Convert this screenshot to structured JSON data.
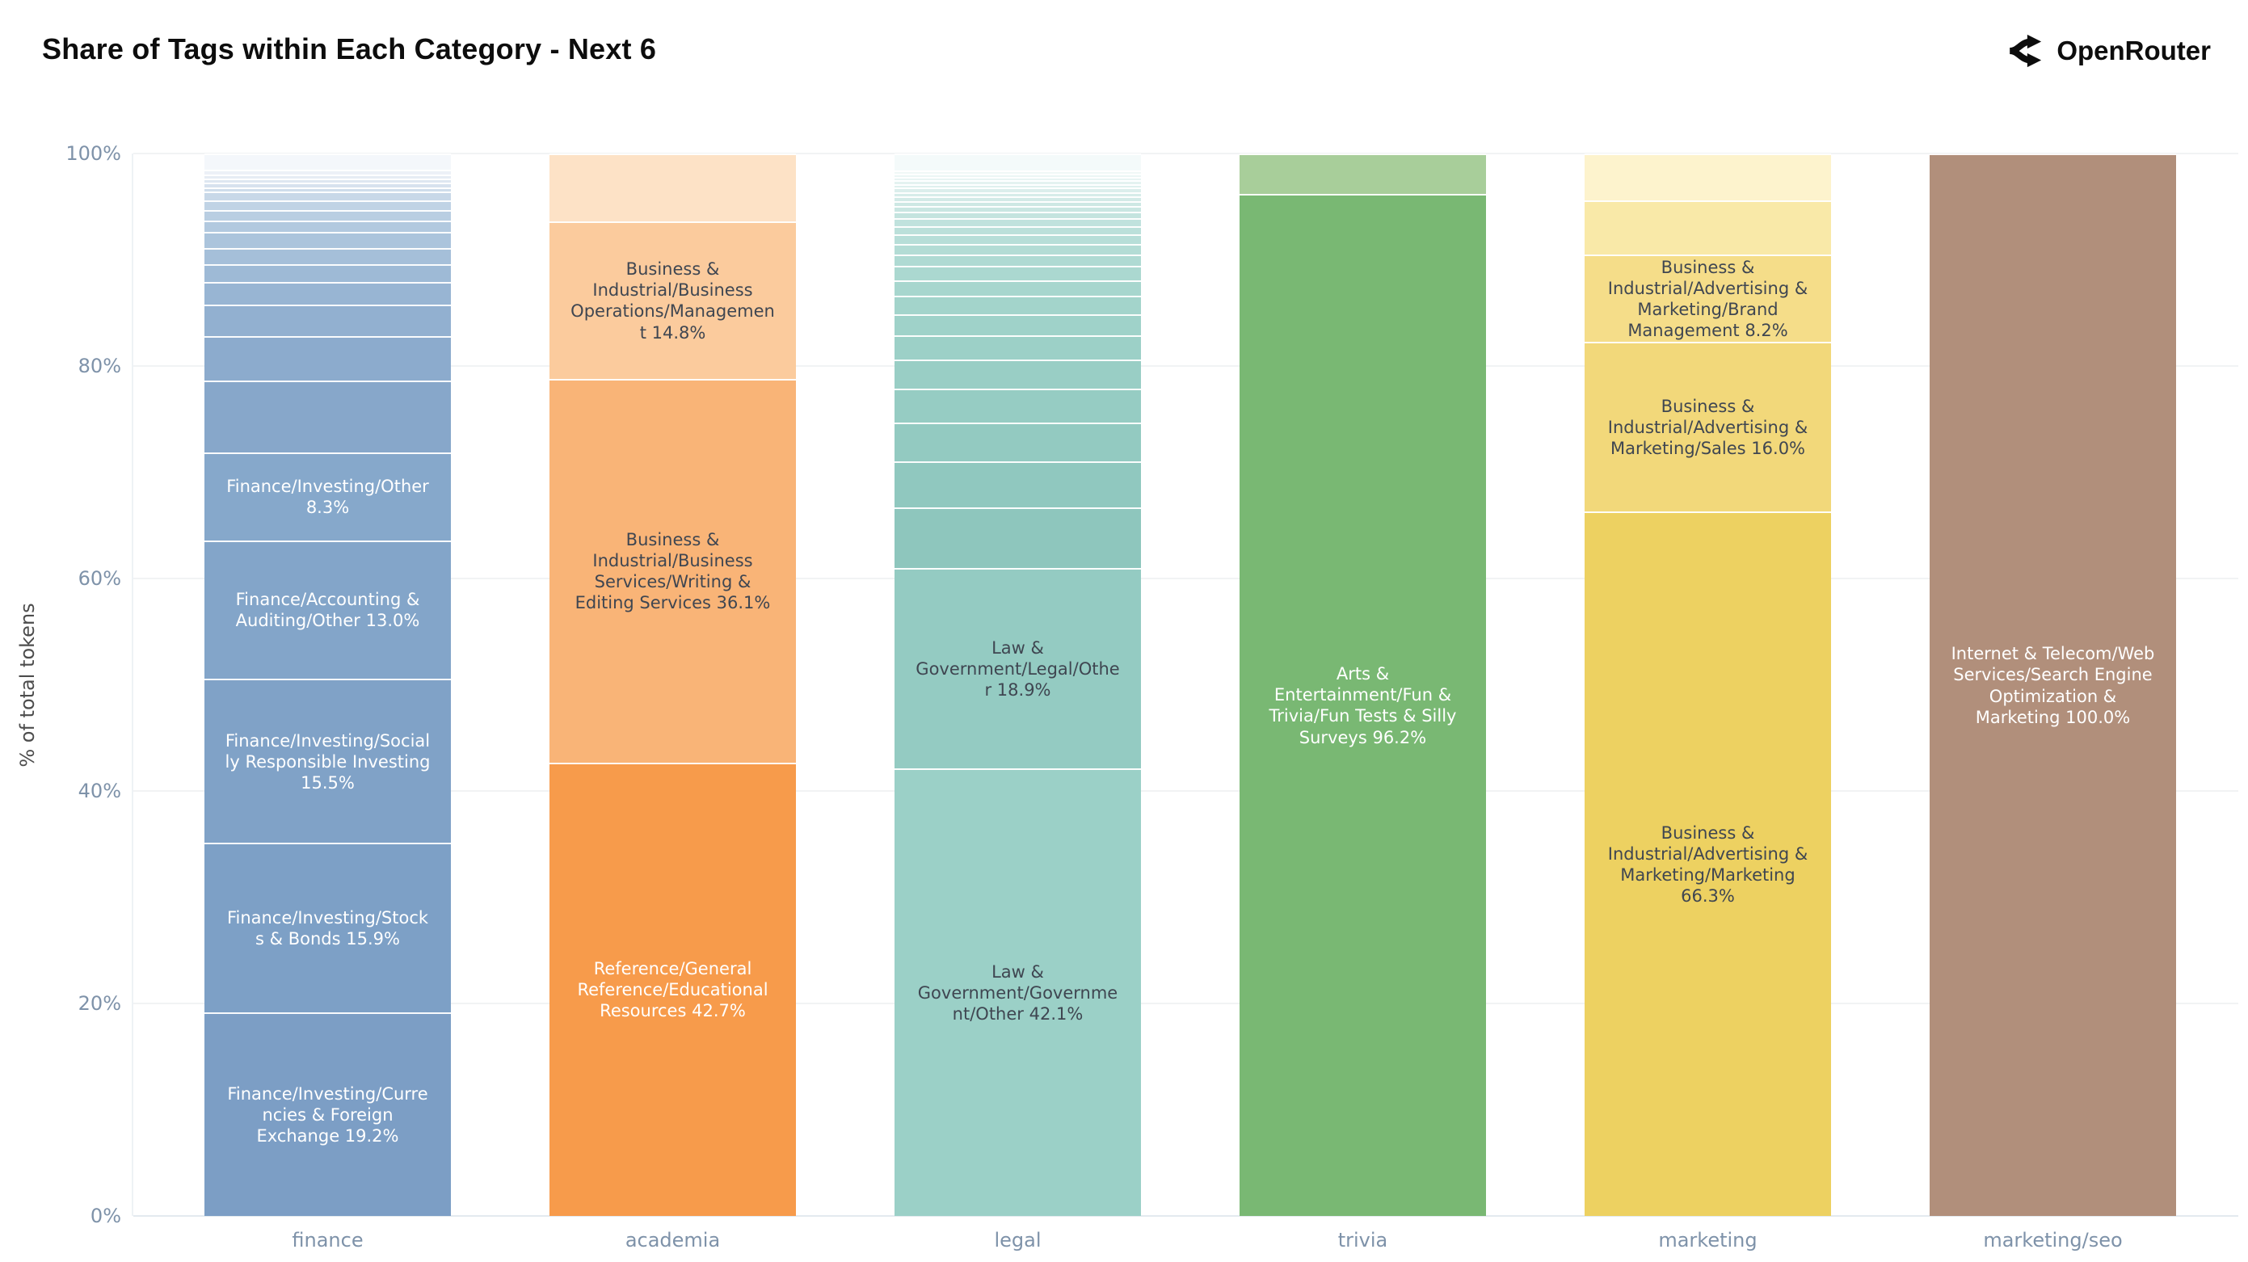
{
  "header": {
    "title": "Share of Tags within Each Category - Next 6",
    "brand": "OpenRouter"
  },
  "chart_data": {
    "type": "bar",
    "stacked": true,
    "title": "Share of Tags within Each Category - Next 6",
    "xlabel": "",
    "ylabel": "% of total tokens",
    "ylim": [
      0,
      100
    ],
    "yticks": [
      0,
      20,
      40,
      60,
      80,
      100
    ],
    "ytick_labels": [
      "0%",
      "20%",
      "40%",
      "60%",
      "80%",
      "100%"
    ],
    "grid": true,
    "legend": "none",
    "categories": [
      "finance",
      "academia",
      "legal",
      "trivia",
      "marketing",
      "marketing/seo"
    ],
    "accent_colors": {
      "finance": "#7d9fc5",
      "academia": "#f79b4b",
      "legal": "#99cfc6",
      "trivia": "#79b873",
      "marketing": "#edd161",
      "marketing_seo": "#b18f7b",
      "axis_text": "#7e92a9",
      "dark_label": "#3f4651",
      "light_label": "#ffffff"
    },
    "bars": [
      {
        "category": "finance",
        "segments": [
          {
            "label": "Finance/Investing/Currencies & Foreign Exchange",
            "value": 19.2,
            "color": "#7c9ec5",
            "text_color": "#ffffff"
          },
          {
            "label": "Finance/Investing/Stocks & Bonds",
            "value": 15.9,
            "color": "#7da0c6",
            "text_color": "#ffffff"
          },
          {
            "label": "Finance/Investing/Socially Responsible Investing",
            "value": 15.5,
            "color": "#80a2c7",
            "text_color": "#ffffff"
          },
          {
            "label": "Finance/Accounting & Auditing/Other",
            "value": 13.0,
            "color": "#83a5c9",
            "text_color": "#ffffff"
          },
          {
            "label": "Finance/Investing/Other",
            "value": 8.3,
            "color": "#86a8cb",
            "text_color": "#ffffff"
          },
          {
            "label": "",
            "value": 6.7,
            "color": "#87a7ca"
          },
          {
            "label": "",
            "value": 4.2,
            "color": "#8cabcd"
          },
          {
            "label": "",
            "value": 3.0,
            "color": "#92b0d0"
          },
          {
            "label": "",
            "value": 2.1,
            "color": "#98b5d3"
          },
          {
            "label": "",
            "value": 1.7,
            "color": "#9ebad6"
          },
          {
            "label": "",
            "value": 1.5,
            "color": "#a5bfd9"
          },
          {
            "label": "",
            "value": 1.5,
            "color": "#abc4dc"
          },
          {
            "label": "",
            "value": 1.1,
            "color": "#b2c9df"
          },
          {
            "label": "",
            "value": 1.0,
            "color": "#b9cee2"
          },
          {
            "label": "",
            "value": 0.9,
            "color": "#c0d3e5"
          },
          {
            "label": "",
            "value": 0.8,
            "color": "#c8d8e8"
          },
          {
            "label": "",
            "value": 0.45,
            "color": "#cfddeb"
          },
          {
            "label": "",
            "value": 0.4,
            "color": "#d7e2ee"
          },
          {
            "label": "",
            "value": 0.4,
            "color": "#dee7f1"
          },
          {
            "label": "",
            "value": 0.4,
            "color": "#e6ecf4"
          },
          {
            "label": "",
            "value": 0.45,
            "color": "#edf1f7"
          },
          {
            "label": "",
            "value": 1.5,
            "color": "#f4f7fb"
          }
        ]
      },
      {
        "category": "academia",
        "segments": [
          {
            "label": "Reference/General Reference/Educational Resources",
            "value": 42.7,
            "color": "#f79b4b",
            "text_color": "#ffffff"
          },
          {
            "label": "Business & Industrial/Business Services/Writing & Editing Services",
            "value": 36.1,
            "color": "#f9b477",
            "text_color": "#3f4651"
          },
          {
            "label": "Business & Industrial/Business Operations/Management",
            "value": 14.8,
            "color": "#fbcb9d",
            "text_color": "#3f4651"
          },
          {
            "label": "",
            "value": 6.4,
            "color": "#fde2c6"
          }
        ]
      },
      {
        "category": "legal",
        "segments": [
          {
            "label": "Law & Government/Government/Other",
            "value": 42.1,
            "color": "#9bd0c7",
            "text_color": "#3f4651"
          },
          {
            "label": "Law & Government/Legal/Other",
            "value": 18.9,
            "color": "#94cbc2",
            "text_color": "#3f4651"
          },
          {
            "label": "",
            "value": 5.7,
            "color": "#8ec6bd"
          },
          {
            "label": "",
            "value": 4.3,
            "color": "#90c8bf"
          },
          {
            "label": "",
            "value": 3.7,
            "color": "#93cac1"
          },
          {
            "label": "",
            "value": 3.2,
            "color": "#96ccc3"
          },
          {
            "label": "",
            "value": 2.7,
            "color": "#99cec5"
          },
          {
            "label": "",
            "value": 2.3,
            "color": "#9cd0c7"
          },
          {
            "label": "",
            "value": 2.0,
            "color": "#9fd2c9"
          },
          {
            "label": "",
            "value": 1.7,
            "color": "#a3d4cb"
          },
          {
            "label": "",
            "value": 1.5,
            "color": "#a7d6ce"
          },
          {
            "label": "",
            "value": 1.3,
            "color": "#abd8d0"
          },
          {
            "label": "",
            "value": 1.1,
            "color": "#afdad3"
          },
          {
            "label": "",
            "value": 1.0,
            "color": "#b3dcd5"
          },
          {
            "label": "",
            "value": 0.9,
            "color": "#b7ded8"
          },
          {
            "label": "",
            "value": 0.8,
            "color": "#bbe0da"
          },
          {
            "label": "",
            "value": 0.7,
            "color": "#c0e2dd"
          },
          {
            "label": "",
            "value": 0.6,
            "color": "#c4e4df"
          },
          {
            "label": "",
            "value": 0.55,
            "color": "#c9e6e2"
          },
          {
            "label": "",
            "value": 0.5,
            "color": "#cde8e4"
          },
          {
            "label": "",
            "value": 0.45,
            "color": "#d2eae7"
          },
          {
            "label": "",
            "value": 0.4,
            "color": "#d6ece9"
          },
          {
            "label": "",
            "value": 0.4,
            "color": "#dbeeec"
          },
          {
            "label": "",
            "value": 0.35,
            "color": "#dff0ee"
          },
          {
            "label": "",
            "value": 0.35,
            "color": "#e4f2f1"
          },
          {
            "label": "",
            "value": 0.3,
            "color": "#e8f4f3"
          },
          {
            "label": "",
            "value": 0.3,
            "color": "#ecf6f5"
          },
          {
            "label": "",
            "value": 0.3,
            "color": "#f0f8f7"
          },
          {
            "label": "",
            "value": 1.6,
            "color": "#f4fafa"
          }
        ]
      },
      {
        "category": "trivia",
        "segments": [
          {
            "label": "Arts & Entertainment/Fun & Trivia/Fun Tests & Silly Surveys",
            "value": 96.2,
            "color": "#79b873",
            "text_color": "#ffffff"
          },
          {
            "label": "",
            "value": 3.8,
            "color": "#a8ce9a"
          }
        ]
      },
      {
        "category": "marketing",
        "segments": [
          {
            "label": "Business & Industrial/Advertising & Marketing/Marketing",
            "value": 66.3,
            "color": "#edd161",
            "text_color": "#3f4651"
          },
          {
            "label": "Business & Industrial/Advertising & Marketing/Sales",
            "value": 16.0,
            "color": "#f2d87a",
            "text_color": "#3f4651"
          },
          {
            "label": "Business & Industrial/Advertising & Marketing/Brand Management",
            "value": 8.2,
            "color": "#f5dd89",
            "text_color": "#3f4651"
          },
          {
            "label": "",
            "value": 5.1,
            "color": "#f9e9a8"
          },
          {
            "label": "",
            "value": 4.4,
            "color": "#fdf3cd"
          }
        ]
      },
      {
        "category": "marketing/seo",
        "segments": [
          {
            "label": "Internet & Telecom/Web Services/Search Engine Optimization & Marketing",
            "value": 100.0,
            "color": "#b18f7b",
            "text_color": "#ffffff"
          }
        ]
      }
    ]
  }
}
